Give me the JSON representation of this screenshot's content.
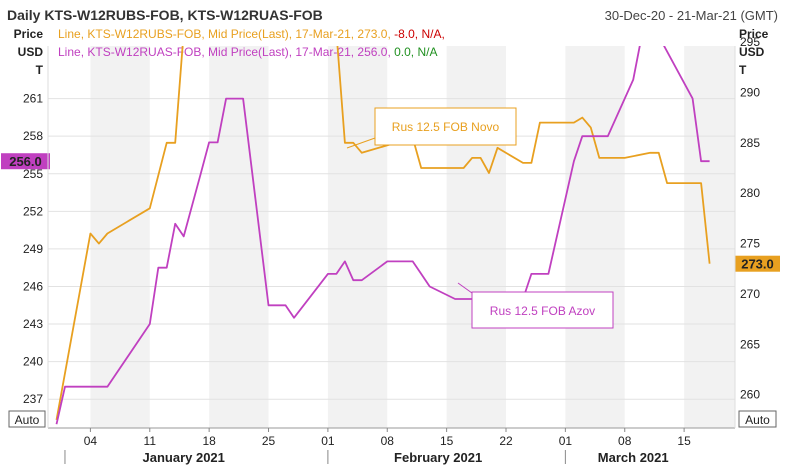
{
  "header": {
    "title": "Daily KTS-W12RUBS-FOB, KTS-W12RUAS-FOB",
    "date_range": "30-Dec-20 - 21-Mar-21 (GMT)"
  },
  "axes": {
    "left_unit_lines": [
      "Price",
      "USD",
      "T"
    ],
    "right_unit_lines": [
      "Price",
      "USD",
      "T"
    ],
    "left_auto": "Auto",
    "right_auto": "Auto"
  },
  "legend": [
    {
      "prefix": "Line, KTS-W12RUBS-FOB, Mid Price(Last), 17-Mar-21, 273.0,",
      "change": "-8.0,",
      "tail": "N/A,",
      "color": "#e8a020",
      "change_color": "#cc0000"
    },
    {
      "prefix": "Line, KTS-W12RUAS-FOB, Mid Price(Last), 17-Mar-21, 256.0,",
      "change": "0.0,",
      "tail": "N/A",
      "color": "#c040c0",
      "change_color": "#209020"
    }
  ],
  "callouts": {
    "novo": "Rus 12.5 FOB Novo",
    "azov": "Rus 12.5 FOB Azov"
  },
  "chart_data": {
    "type": "line",
    "x_range": [
      "2020-12-30",
      "2021-03-21"
    ],
    "x_ticks": [
      {
        "date": "2021-01-04",
        "label": "04"
      },
      {
        "date": "2021-01-11",
        "label": "11"
      },
      {
        "date": "2021-01-18",
        "label": "18"
      },
      {
        "date": "2021-01-25",
        "label": "25"
      },
      {
        "date": "2021-02-01",
        "label": "01"
      },
      {
        "date": "2021-02-08",
        "label": "08"
      },
      {
        "date": "2021-02-15",
        "label": "15"
      },
      {
        "date": "2021-02-22",
        "label": "22"
      },
      {
        "date": "2021-03-01",
        "label": "01"
      },
      {
        "date": "2021-03-08",
        "label": "08"
      },
      {
        "date": "2021-03-15",
        "label": "15"
      }
    ],
    "months": [
      {
        "label": "January 2021",
        "center": "2021-01-15"
      },
      {
        "label": "February 2021",
        "center": "2021-02-14"
      },
      {
        "label": "March 2021",
        "center": "2021-03-09"
      }
    ],
    "month_separators": [
      "2021-01-01",
      "2021-02-01",
      "2021-03-01"
    ],
    "left_axis": {
      "range": [
        234.7,
        265.2
      ],
      "ticks": [
        237,
        240,
        243,
        246,
        249,
        252,
        255,
        258,
        261
      ],
      "last_label": "256.0",
      "last_value": 256.0,
      "last_color": "#c040c0"
    },
    "right_axis": {
      "range": [
        256.7,
        294.6
      ],
      "ticks": [
        260,
        265,
        270,
        275,
        280,
        285,
        290,
        295
      ],
      "last_label": "273.0",
      "last_value": 273.0,
      "last_color": "#e8a020"
    },
    "series": [
      {
        "name": "KTS-W12RUBS-FOB",
        "axis": "right",
        "color": "#e8a020",
        "points": [
          [
            "2020-12-31",
            257.5
          ],
          [
            "2021-01-04",
            276
          ],
          [
            "2021-01-05",
            275
          ],
          [
            "2021-01-06",
            276
          ],
          [
            "2021-01-11",
            278.5
          ],
          [
            "2021-01-13",
            285
          ],
          [
            "2021-01-14",
            285
          ],
          [
            "2021-01-15",
            296
          ],
          [
            "2021-01-18",
            296
          ],
          [
            "2021-01-19",
            296
          ],
          [
            "2021-01-20",
            300.5
          ],
          [
            "2021-01-21",
            300.5
          ],
          [
            "2021-01-22",
            295
          ],
          [
            "2021-01-25",
            295
          ],
          [
            "2021-01-29",
            295
          ],
          [
            "2021-02-01",
            296
          ],
          [
            "2021-02-02",
            296
          ],
          [
            "2021-02-03",
            285
          ],
          [
            "2021-02-04",
            285
          ],
          [
            "2021-02-05",
            284
          ],
          [
            "2021-02-09",
            285
          ],
          [
            "2021-02-10",
            285
          ],
          [
            "2021-02-11",
            285.5
          ],
          [
            "2021-02-12",
            282.5
          ],
          [
            "2021-02-17",
            282.5
          ],
          [
            "2021-02-18",
            283.5
          ],
          [
            "2021-02-19",
            283.5
          ],
          [
            "2021-02-20",
            282
          ],
          [
            "2021-02-21",
            284.5
          ],
          [
            "2021-02-24",
            283
          ],
          [
            "2021-02-25",
            283
          ],
          [
            "2021-02-26",
            287
          ],
          [
            "2021-03-02",
            287
          ],
          [
            "2021-03-03",
            287.5
          ],
          [
            "2021-03-04",
            286.5
          ],
          [
            "2021-03-05",
            283.5
          ],
          [
            "2021-03-08",
            283.5
          ],
          [
            "2021-03-11",
            284
          ],
          [
            "2021-03-12",
            284
          ],
          [
            "2021-03-13",
            281
          ],
          [
            "2021-03-16",
            281
          ],
          [
            "2021-03-17",
            281
          ],
          [
            "2021-03-18",
            273
          ]
        ]
      },
      {
        "name": "KTS-W12RUAS-FOB",
        "axis": "left",
        "color": "#c040c0",
        "points": [
          [
            "2020-12-31",
            235
          ],
          [
            "2021-01-01",
            238
          ],
          [
            "2021-01-06",
            238
          ],
          [
            "2021-01-11",
            243
          ],
          [
            "2021-01-12",
            247.5
          ],
          [
            "2021-01-13",
            247.5
          ],
          [
            "2021-01-14",
            251
          ],
          [
            "2021-01-15",
            250
          ],
          [
            "2021-01-17",
            255
          ],
          [
            "2021-01-18",
            257.5
          ],
          [
            "2021-01-19",
            257.5
          ],
          [
            "2021-01-20",
            261
          ],
          [
            "2021-01-22",
            261
          ],
          [
            "2021-01-25",
            244.5
          ],
          [
            "2021-01-27",
            244.5
          ],
          [
            "2021-01-28",
            243.5
          ],
          [
            "2021-02-01",
            247
          ],
          [
            "2021-02-02",
            247
          ],
          [
            "2021-02-03",
            248
          ],
          [
            "2021-02-04",
            246.5
          ],
          [
            "2021-02-05",
            246.5
          ],
          [
            "2021-02-08",
            248
          ],
          [
            "2021-02-11",
            248
          ],
          [
            "2021-02-12",
            247
          ],
          [
            "2021-02-13",
            246
          ],
          [
            "2021-02-16",
            245
          ],
          [
            "2021-02-24",
            245
          ],
          [
            "2021-02-25",
            247
          ],
          [
            "2021-02-27",
            247
          ],
          [
            "2021-03-02",
            256
          ],
          [
            "2021-03-03",
            258
          ],
          [
            "2021-03-06",
            258
          ],
          [
            "2021-03-09",
            262.5
          ],
          [
            "2021-03-10",
            266
          ],
          [
            "2021-03-11",
            266
          ],
          [
            "2021-03-12",
            266
          ],
          [
            "2021-03-16",
            261
          ],
          [
            "2021-03-17",
            256
          ],
          [
            "2021-03-18",
            256
          ]
        ]
      }
    ]
  }
}
